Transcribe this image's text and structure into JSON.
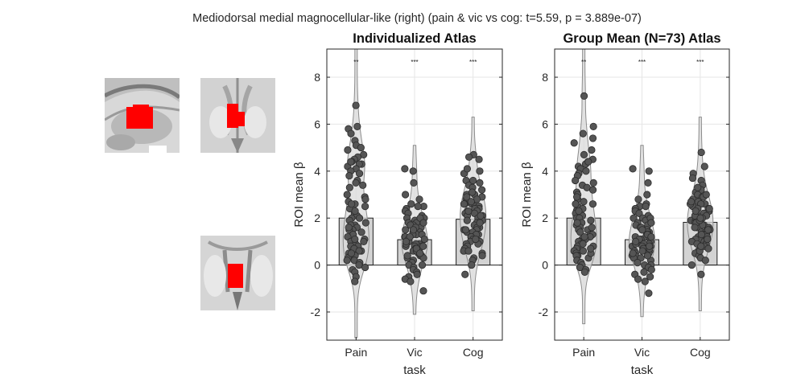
{
  "figure": {
    "suptitle": "Mediodorsal medial magnocellular-like (right) (pain & vic vs cog: t=5.59, p = 3.889e-07)"
  },
  "brain_slices": [
    {
      "name": "sagittal-slice"
    },
    {
      "name": "coronal-slice"
    },
    {
      "name": "axial-slice"
    }
  ],
  "colors": {
    "roi": "#ff0000",
    "bar_fill": "#d3d3d3",
    "violin_fill": "#d9d9d9",
    "violin_edge": "#8c8c8c",
    "point_fill": "#555555",
    "point_edge": "#2b2b2b",
    "grid": "#e6e6e6"
  },
  "chart_data": [
    {
      "type": "bar",
      "title": "Individualized Atlas",
      "xlabel": "task",
      "ylabel": "ROI mean β",
      "categories": [
        "Pain",
        "Vic",
        "Cog"
      ],
      "values": [
        2.0,
        1.08,
        1.95
      ],
      "significance": [
        "**",
        "***",
        "***"
      ],
      "ylim": [
        -3.2,
        9.2
      ],
      "yticks": [
        -2,
        0,
        2,
        4,
        6,
        8
      ],
      "grid": true,
      "violin_range": [
        [
          -3.1,
          9.2
        ],
        [
          -2.1,
          5.1
        ],
        [
          -1.95,
          6.3
        ]
      ],
      "points": [
        [
          6.8,
          5.9,
          5.8,
          5.6,
          5.3,
          5.1,
          4.9,
          4.7,
          4.6,
          4.5,
          4.4,
          4.3,
          4.3,
          4.2,
          4.1,
          4.0,
          3.9,
          3.8,
          3.6,
          3.5,
          3.3,
          3.0,
          2.9,
          2.8,
          2.7,
          2.6,
          2.5,
          2.4,
          2.2,
          2.1,
          2.0,
          2.0,
          1.9,
          1.8,
          1.7,
          1.7,
          1.6,
          1.5,
          1.5,
          1.4,
          1.3,
          1.3,
          1.2,
          1.1,
          1.0,
          1.0,
          0.9,
          0.8,
          0.8,
          0.7,
          0.6,
          0.6,
          0.5,
          0.4,
          0.4,
          0.3,
          0.2,
          0.2,
          0.1,
          0.0,
          -0.1,
          -0.2,
          -0.3,
          -0.5,
          -0.7,
          3.4,
          2.3,
          1.1,
          0.5,
          4.4,
          5.0,
          1.6,
          2.6
        ],
        [
          4.1,
          4.0,
          3.5,
          3.0,
          2.8,
          2.6,
          2.5,
          2.4,
          2.3,
          2.2,
          2.1,
          2.0,
          2.0,
          1.9,
          1.8,
          1.8,
          1.7,
          1.7,
          1.6,
          1.5,
          1.5,
          1.4,
          1.4,
          1.3,
          1.3,
          1.2,
          1.2,
          1.1,
          1.1,
          1.0,
          1.0,
          0.9,
          0.9,
          0.8,
          0.8,
          0.8,
          0.7,
          0.7,
          0.6,
          0.6,
          0.5,
          0.5,
          0.4,
          0.4,
          0.3,
          0.3,
          0.2,
          0.1,
          0.0,
          0.0,
          -0.1,
          -0.2,
          -0.3,
          -0.4,
          -0.5,
          -0.6,
          -0.7,
          -1.1,
          1.6,
          1.3,
          0.9,
          0.6,
          2.0,
          1.1,
          0.7,
          1.5,
          0.4,
          1.8,
          1.2,
          0.8,
          1.0,
          2.5,
          0.5
        ],
        [
          4.7,
          4.6,
          4.5,
          4.0,
          3.9,
          3.6,
          3.5,
          3.4,
          3.3,
          3.2,
          3.1,
          3.0,
          3.0,
          2.9,
          2.8,
          2.8,
          2.7,
          2.6,
          2.6,
          2.5,
          2.5,
          2.4,
          2.4,
          2.3,
          2.3,
          2.2,
          2.2,
          2.1,
          2.1,
          2.0,
          2.0,
          1.9,
          1.9,
          1.8,
          1.8,
          1.7,
          1.7,
          1.6,
          1.6,
          1.5,
          1.5,
          1.4,
          1.4,
          1.3,
          1.3,
          1.2,
          1.2,
          1.1,
          1.0,
          1.0,
          0.9,
          0.8,
          0.7,
          0.6,
          0.5,
          0.4,
          0.3,
          0.2,
          0.0,
          -0.4,
          2.9,
          2.1,
          1.5,
          3.6,
          0.9,
          2.6,
          1.8,
          3.1,
          2.3,
          1.1,
          2.7,
          4.1,
          0.6
        ]
      ]
    },
    {
      "type": "bar",
      "title": "Group Mean (N=73) Atlas",
      "xlabel": "task",
      "ylabel": "ROI mean β",
      "categories": [
        "Pain",
        "Vic",
        "Cog"
      ],
      "values": [
        2.0,
        1.08,
        1.82
      ],
      "significance": [
        "**",
        "***",
        "***"
      ],
      "ylim": [
        -3.2,
        9.2
      ],
      "yticks": [
        -2,
        0,
        2,
        4,
        6,
        8
      ],
      "grid": true,
      "violin_range": [
        [
          -2.5,
          9.2
        ],
        [
          -2.2,
          5.1
        ],
        [
          -1.95,
          6.3
        ]
      ],
      "points": [
        [
          7.2,
          5.9,
          5.6,
          5.4,
          5.2,
          4.9,
          4.7,
          4.5,
          4.4,
          4.3,
          4.2,
          4.1,
          4.0,
          3.9,
          3.8,
          3.5,
          3.4,
          3.3,
          3.1,
          3.0,
          2.8,
          2.7,
          2.6,
          2.5,
          2.4,
          2.3,
          2.2,
          2.1,
          2.0,
          2.0,
          1.9,
          1.8,
          1.7,
          1.7,
          1.6,
          1.5,
          1.5,
          1.4,
          1.3,
          1.3,
          1.2,
          1.1,
          1.0,
          1.0,
          0.9,
          0.8,
          0.8,
          0.7,
          0.6,
          0.6,
          0.5,
          0.4,
          0.4,
          0.3,
          0.2,
          0.1,
          0.0,
          -0.1,
          -0.2,
          -0.3,
          3.6,
          2.3,
          1.1,
          0.5,
          4.4,
          1.6,
          2.6,
          0.9,
          3.2,
          1.8,
          0.7,
          2.9,
          1.2
        ],
        [
          4.1,
          4.0,
          3.5,
          3.0,
          2.8,
          2.6,
          2.5,
          2.4,
          2.3,
          2.2,
          2.1,
          2.0,
          2.0,
          1.9,
          1.8,
          1.8,
          1.7,
          1.7,
          1.6,
          1.5,
          1.5,
          1.4,
          1.4,
          1.3,
          1.3,
          1.2,
          1.2,
          1.1,
          1.1,
          1.0,
          1.0,
          0.9,
          0.9,
          0.8,
          0.8,
          0.8,
          0.7,
          0.7,
          0.6,
          0.6,
          0.5,
          0.5,
          0.4,
          0.4,
          0.3,
          0.3,
          0.2,
          0.1,
          0.0,
          0.0,
          -0.1,
          -0.2,
          -0.3,
          -0.4,
          -0.5,
          -0.6,
          -0.7,
          -1.2,
          1.6,
          1.3,
          0.9,
          0.6,
          2.0,
          1.1,
          0.7,
          1.5,
          0.4,
          1.8,
          1.2,
          0.8,
          1.0,
          2.5,
          0.5
        ],
        [
          4.8,
          4.2,
          3.9,
          3.6,
          3.4,
          3.2,
          3.1,
          3.0,
          2.9,
          2.8,
          2.7,
          2.6,
          2.6,
          2.5,
          2.4,
          2.4,
          2.3,
          2.3,
          2.2,
          2.2,
          2.1,
          2.1,
          2.0,
          2.0,
          1.9,
          1.9,
          1.8,
          1.8,
          1.7,
          1.7,
          1.6,
          1.6,
          1.5,
          1.5,
          1.4,
          1.4,
          1.3,
          1.3,
          1.2,
          1.2,
          1.1,
          1.1,
          1.0,
          1.0,
          0.9,
          0.8,
          0.7,
          0.6,
          0.5,
          0.4,
          0.3,
          0.2,
          0.0,
          -0.4,
          2.9,
          2.1,
          1.5,
          3.3,
          0.9,
          2.6,
          1.8,
          3.0,
          2.3,
          1.1,
          2.7,
          3.7,
          0.6,
          1.9,
          2.4,
          1.3,
          2.0,
          1.6,
          0.8
        ]
      ]
    }
  ]
}
